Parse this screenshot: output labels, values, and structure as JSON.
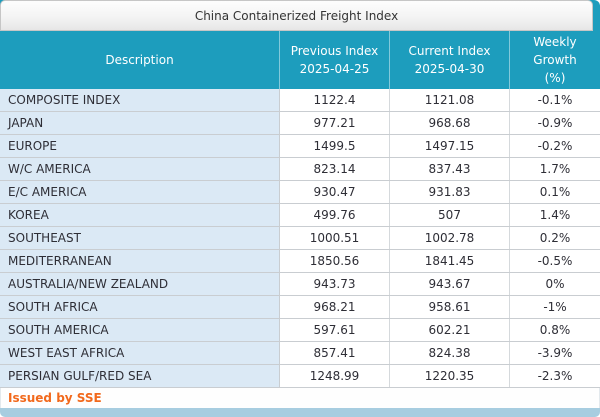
{
  "title": "China Containerized Freight Index",
  "table": {
    "columns": [
      {
        "label": "Description",
        "sub": ""
      },
      {
        "label": "Previous Index",
        "sub": "2025-04-25"
      },
      {
        "label": "Current Index",
        "sub": "2025-04-30"
      },
      {
        "label": "Weekly Growth",
        "sub": "(%)"
      }
    ],
    "rows": [
      {
        "description": "COMPOSITE INDEX",
        "previous": "1122.4",
        "current": "1121.08",
        "growth": "-0.1%"
      },
      {
        "description": "JAPAN",
        "previous": "977.21",
        "current": "968.68",
        "growth": "-0.9%"
      },
      {
        "description": "EUROPE",
        "previous": "1499.5",
        "current": "1497.15",
        "growth": "-0.2%"
      },
      {
        "description": "W/C AMERICA",
        "previous": "823.14",
        "current": "837.43",
        "growth": "1.7%"
      },
      {
        "description": "E/C AMERICA",
        "previous": "930.47",
        "current": "931.83",
        "growth": "0.1%"
      },
      {
        "description": "KOREA",
        "previous": "499.76",
        "current": "507",
        "growth": "1.4%"
      },
      {
        "description": "SOUTHEAST",
        "previous": "1000.51",
        "current": "1002.78",
        "growth": "0.2%"
      },
      {
        "description": "MEDITERRANEAN",
        "previous": "1850.56",
        "current": "1841.45",
        "growth": "-0.5%"
      },
      {
        "description": "AUSTRALIA/NEW ZEALAND",
        "previous": "943.73",
        "current": "943.67",
        "growth": "0%"
      },
      {
        "description": "SOUTH AFRICA",
        "previous": "968.21",
        "current": "958.61",
        "growth": "-1%"
      },
      {
        "description": "SOUTH AMERICA",
        "previous": "597.61",
        "current": "602.21",
        "growth": "0.8%"
      },
      {
        "description": "WEST EAST AFRICA",
        "previous": "857.41",
        "current": "824.38",
        "growth": "-3.9%"
      },
      {
        "description": "PERSIAN GULF/RED SEA",
        "previous": "1248.99",
        "current": "1220.35",
        "growth": "-2.3%"
      }
    ]
  },
  "footer": {
    "issued_by": "Issued by SSE"
  },
  "colors": {
    "header_teal": "#1d9dbd",
    "desc_cell_bg": "#dbe9f5",
    "bottom_bar": "#a7cde0",
    "footer_text": "#f2691c"
  }
}
